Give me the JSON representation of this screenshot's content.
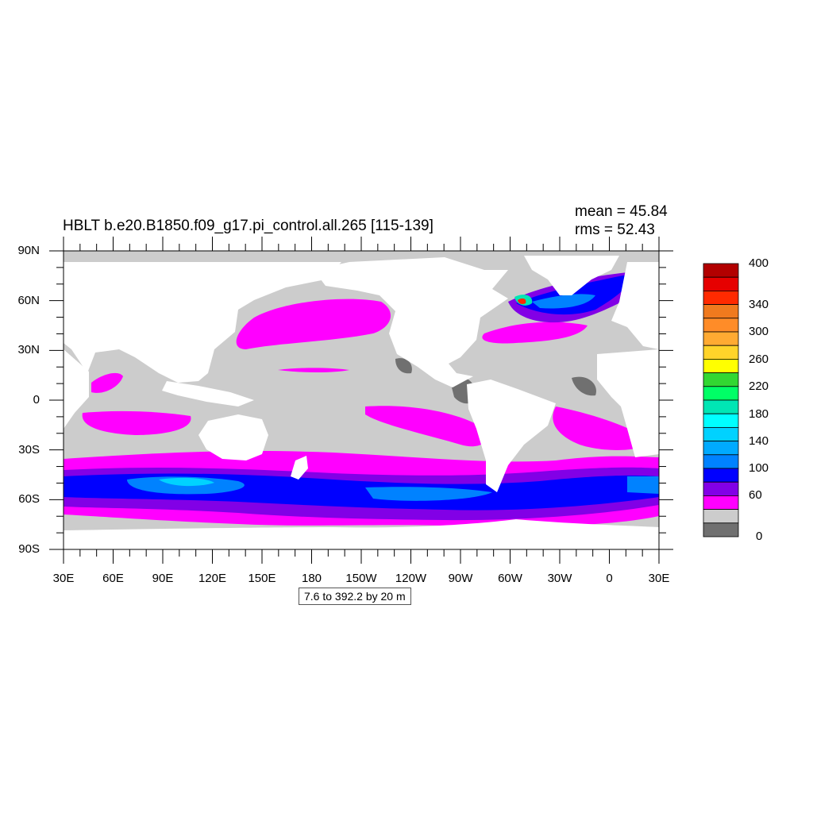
{
  "title": "HBLT b.e20.B1850.f09_g17.pi_control.all.265 [115-139]",
  "stats": {
    "mean": "mean = 45.84",
    "rms": "rms = 52.43"
  },
  "contour_info": "7.6 to 392.2 by 20 m",
  "lat_labels": [
    "90N",
    "60N",
    "30N",
    "0",
    "30S",
    "60S",
    "90S"
  ],
  "lon_labels": [
    "30E",
    "60E",
    "90E",
    "120E",
    "150E",
    "180",
    "150W",
    "120W",
    "90W",
    "60W",
    "30W",
    "0",
    "30E"
  ],
  "colorbar": {
    "labels": [
      "400",
      "340",
      "300",
      "260",
      "220",
      "180",
      "140",
      "100",
      "60",
      "0"
    ],
    "colors": [
      "#b20000",
      "#e60000",
      "#ff2a00",
      "#f07a1e",
      "#ff8c28",
      "#ffaa32",
      "#ffd42a",
      "#ffff00",
      "#32d732",
      "#00ff66",
      "#00e6b4",
      "#00ffff",
      "#00d2ff",
      "#00aaff",
      "#0082ff",
      "#0000ff",
      "#8200e6",
      "#ff00ff",
      "#cccccc",
      "#707070"
    ]
  },
  "colors": {
    "land": "#ffffff",
    "ocean_low": "#cccccc",
    "ocean_min": "#707070",
    "level_60": "#ff00ff",
    "level_80": "#8200e6",
    "level_100": "#0000ff",
    "level_120": "#0082ff"
  }
}
